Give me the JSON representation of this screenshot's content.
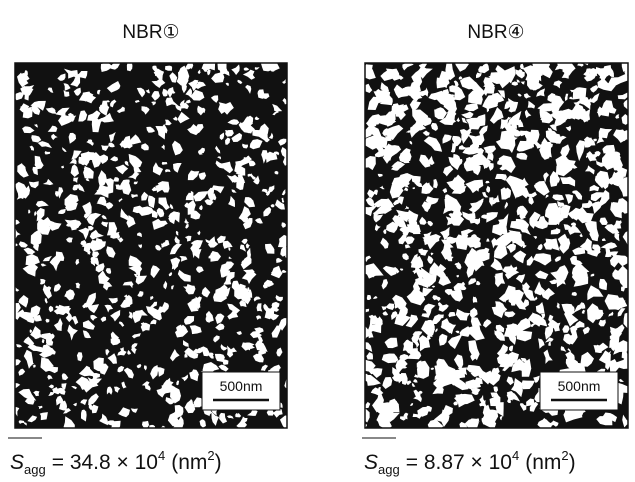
{
  "panels": [
    {
      "title": "NBR①",
      "scale_bar": "500nm",
      "caption": {
        "symbol": "S",
        "subscript": "agg",
        "text": "= 34.8 × 10",
        "exponent": "4",
        "unit_open": "(nm",
        "unit_exponent": "2",
        "unit_close": ")"
      }
    },
    {
      "title": "NBR④",
      "scale_bar": "500nm",
      "caption": {
        "symbol": "S",
        "subscript": "agg",
        "text": "= 8.87 × 10",
        "exponent": "4",
        "unit_open": "(nm",
        "unit_exponent": "2",
        "unit_close": ")"
      }
    }
  ]
}
